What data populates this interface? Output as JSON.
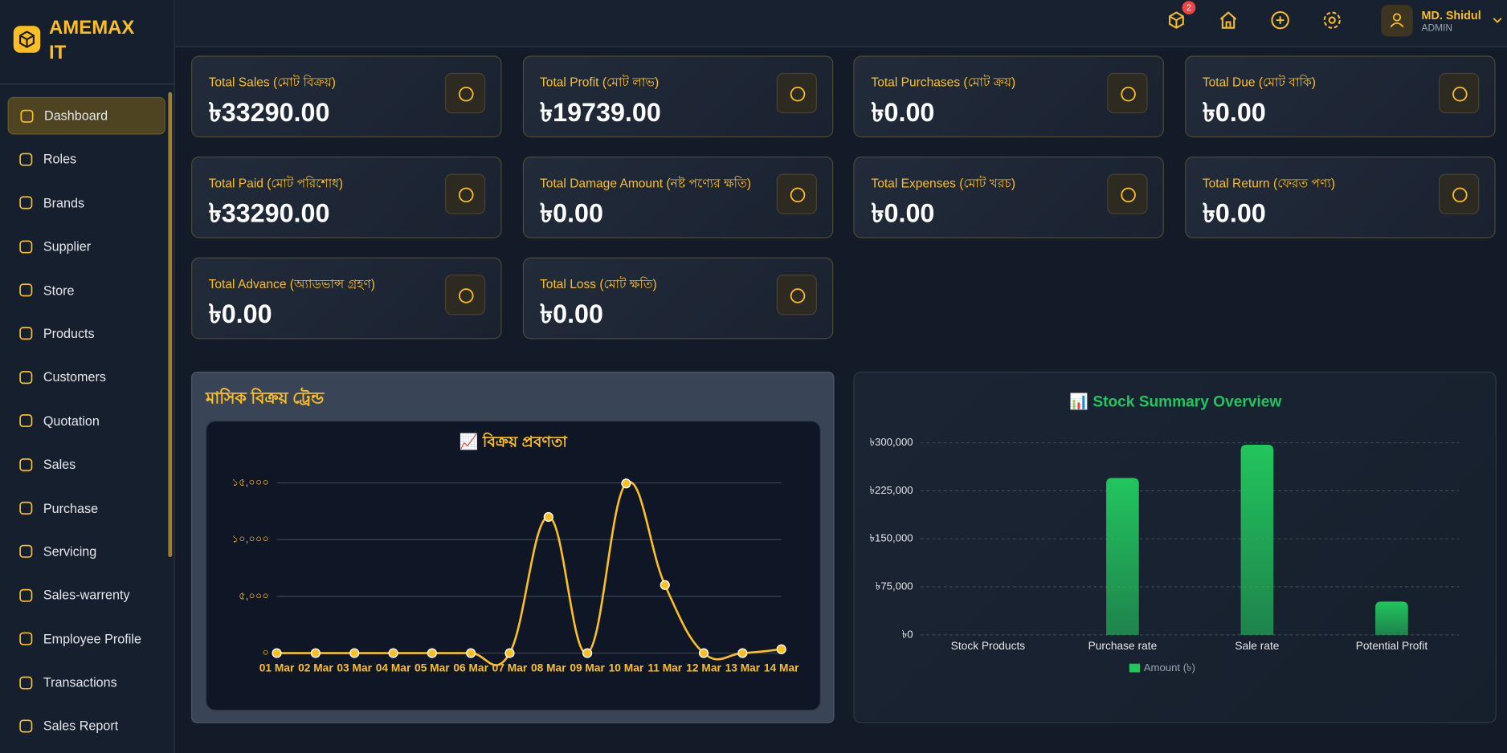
{
  "brand": "AMEMAX IT",
  "nav": [
    "Dashboard",
    "Roles",
    "Brands",
    "Supplier",
    "Store",
    "Products",
    "Customers",
    "Quotation",
    "Sales",
    "Purchase",
    "Servicing",
    "Sales-warrenty",
    "Employee Profile",
    "Transactions",
    "Sales Report"
  ],
  "header": {
    "notification_count": 2,
    "user_name": "MD. Shidul",
    "user_role": "ADMIN"
  },
  "stats": [
    {
      "label": "Total Sales (মোট বিক্রয়)",
      "value": "৳33290.00"
    },
    {
      "label": "Total Profit (মোট লাভ)",
      "value": "৳19739.00"
    },
    {
      "label": "Total Purchases (মোট ক্রয়)",
      "value": "৳0.00"
    },
    {
      "label": "Total Due (মোট বাকি)",
      "value": "৳0.00"
    },
    {
      "label": "Total Paid (মোট পরিশোধ)",
      "value": "৳33290.00"
    },
    {
      "label": "Total Damage Amount (নষ্ট পণ্যের ক্ষতি)",
      "value": "৳0.00"
    },
    {
      "label": "Total Expenses (মোট খরচ)",
      "value": "৳0.00"
    },
    {
      "label": "Total Return (ফেরত পণ্য)",
      "value": "৳0.00"
    },
    {
      "label": "Total Advance (অ্যাডভান্স গ্রহণ)",
      "value": "৳0.00"
    },
    {
      "label": "Total Loss (মোট ক্ষতি)",
      "value": "৳0.00"
    }
  ],
  "sales_panel_title": "মাসিক বিক্রয় ট্রেন্ড",
  "chart_data": [
    {
      "type": "line",
      "title": "📈 বিক্রয় প্রবণতা",
      "categories": [
        "01 Mar",
        "02 Mar",
        "03 Mar",
        "04 Mar",
        "05 Mar",
        "06 Mar",
        "07 Mar",
        "08 Mar",
        "09 Mar",
        "10 Mar",
        "11 Mar",
        "12 Mar",
        "13 Mar",
        "14 Mar"
      ],
      "color": "#fbbf24",
      "values": [
        0,
        0,
        0,
        0,
        0,
        0,
        0,
        12000,
        0,
        14950,
        6000,
        0,
        0,
        340
      ],
      "ylim": [
        0,
        16000
      ],
      "yticks": [
        {
          "value": 0,
          "label": "০"
        },
        {
          "value": 5000,
          "label": "৫,০০০"
        },
        {
          "value": 10000,
          "label": "১০,০০০"
        },
        {
          "value": 15000,
          "label": "১৫,০০০"
        }
      ],
      "grid": true
    },
    {
      "type": "bar",
      "title": "📊 Stock Summary Overview",
      "categories": [
        "Stock Products",
        "Purchase rate",
        "Sale rate",
        "Potential Profit"
      ],
      "series": [
        {
          "name": "Amount (৳)",
          "color": "#22c55e",
          "values": [
            0,
            245000,
            297000,
            52000
          ]
        }
      ],
      "ylim": [
        0,
        300000
      ],
      "yticks": [
        {
          "value": 0,
          "label": "৳0"
        },
        {
          "value": 75000,
          "label": "৳75,000"
        },
        {
          "value": 150000,
          "label": "৳150,000"
        },
        {
          "value": 225000,
          "label": "৳225,000"
        },
        {
          "value": 300000,
          "label": "৳300,000"
        }
      ],
      "grid": true,
      "legend": "bottom"
    }
  ]
}
